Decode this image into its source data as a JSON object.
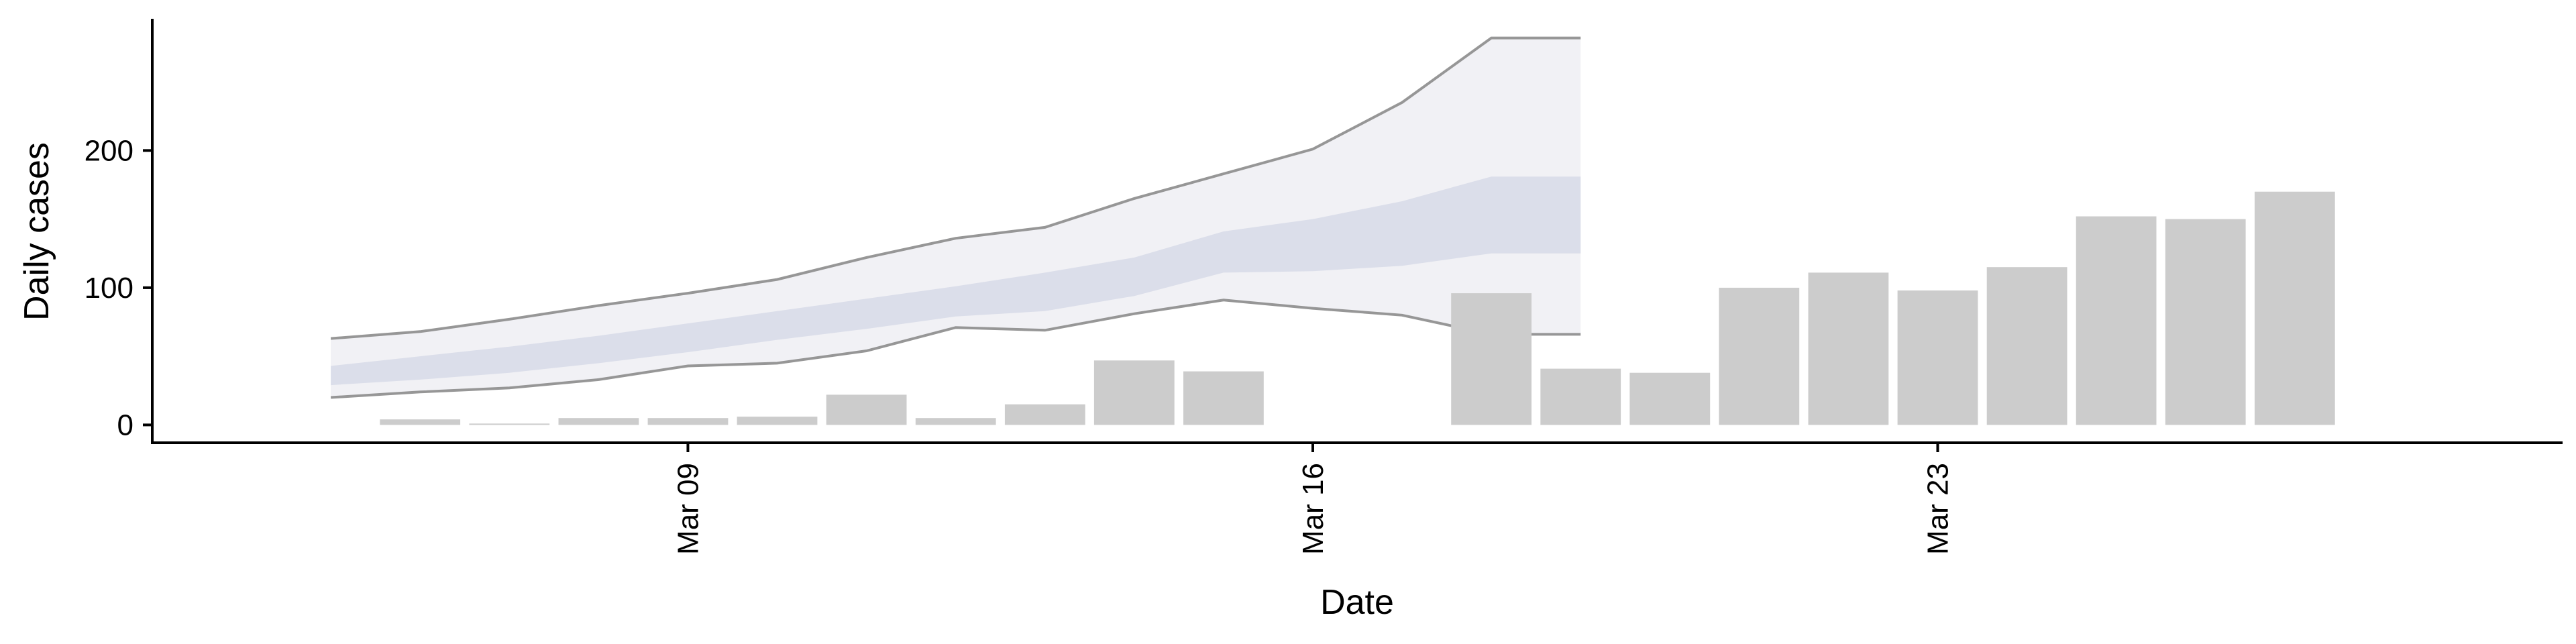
{
  "chart_data": {
    "type": "bar",
    "title": "",
    "xlabel": "Date",
    "ylabel": "Daily cases",
    "x_ticks": [
      "Mar 09",
      "Mar 16",
      "Mar 23"
    ],
    "y_ticks": [
      0,
      100,
      200
    ],
    "ylim": [
      -13,
      296
    ],
    "x_range": [
      "2020-03-03",
      "2020-03-30"
    ],
    "grid": false,
    "legend": "none",
    "bars": {
      "name": "",
      "color": "#cccccc",
      "x": [
        "2020-03-06",
        "2020-03-07",
        "2020-03-08",
        "2020-03-09",
        "2020-03-10",
        "2020-03-11",
        "2020-03-12",
        "2020-03-13",
        "2020-03-14",
        "2020-03-15",
        "2020-03-16",
        "2020-03-18",
        "2020-03-19",
        "2020-03-20",
        "2020-03-21",
        "2020-03-22",
        "2020-03-23",
        "2020-03-24",
        "2020-03-25",
        "2020-03-26",
        "2020-03-27",
        "2020-03-28"
      ],
      "values": [
        4,
        1,
        5,
        5,
        6,
        22,
        5,
        15,
        47,
        39,
        0,
        96,
        41,
        38,
        100,
        111,
        98,
        115,
        152,
        150,
        170,
        0
      ]
    },
    "forecast": {
      "x": [
        "2020-03-05",
        "2020-03-06",
        "2020-03-07",
        "2020-03-08",
        "2020-03-09",
        "2020-03-10",
        "2020-03-11",
        "2020-03-12",
        "2020-03-13",
        "2020-03-14",
        "2020-03-15",
        "2020-03-16",
        "2020-03-17",
        "2020-03-18",
        "2020-03-19"
      ],
      "outer_upper": [
        63,
        68,
        77,
        87,
        96,
        106,
        122,
        136,
        144,
        165,
        183,
        201,
        235,
        282,
        282
      ],
      "outer_lower": [
        20,
        24,
        27,
        33,
        43,
        45,
        54,
        71,
        69,
        81,
        91,
        85,
        80,
        66,
        66
      ],
      "inner_upper": [
        43,
        50,
        57,
        65,
        74,
        83,
        92,
        101,
        111,
        122,
        141,
        150,
        163,
        181,
        181
      ],
      "inner_lower": [
        29,
        33,
        38,
        45,
        53,
        62,
        70,
        79,
        83,
        94,
        111,
        112,
        116,
        125,
        125
      ],
      "outer_color": "#ececf1",
      "inner_color": "#d3d7e5",
      "line_color": "#8c8c8c"
    }
  }
}
